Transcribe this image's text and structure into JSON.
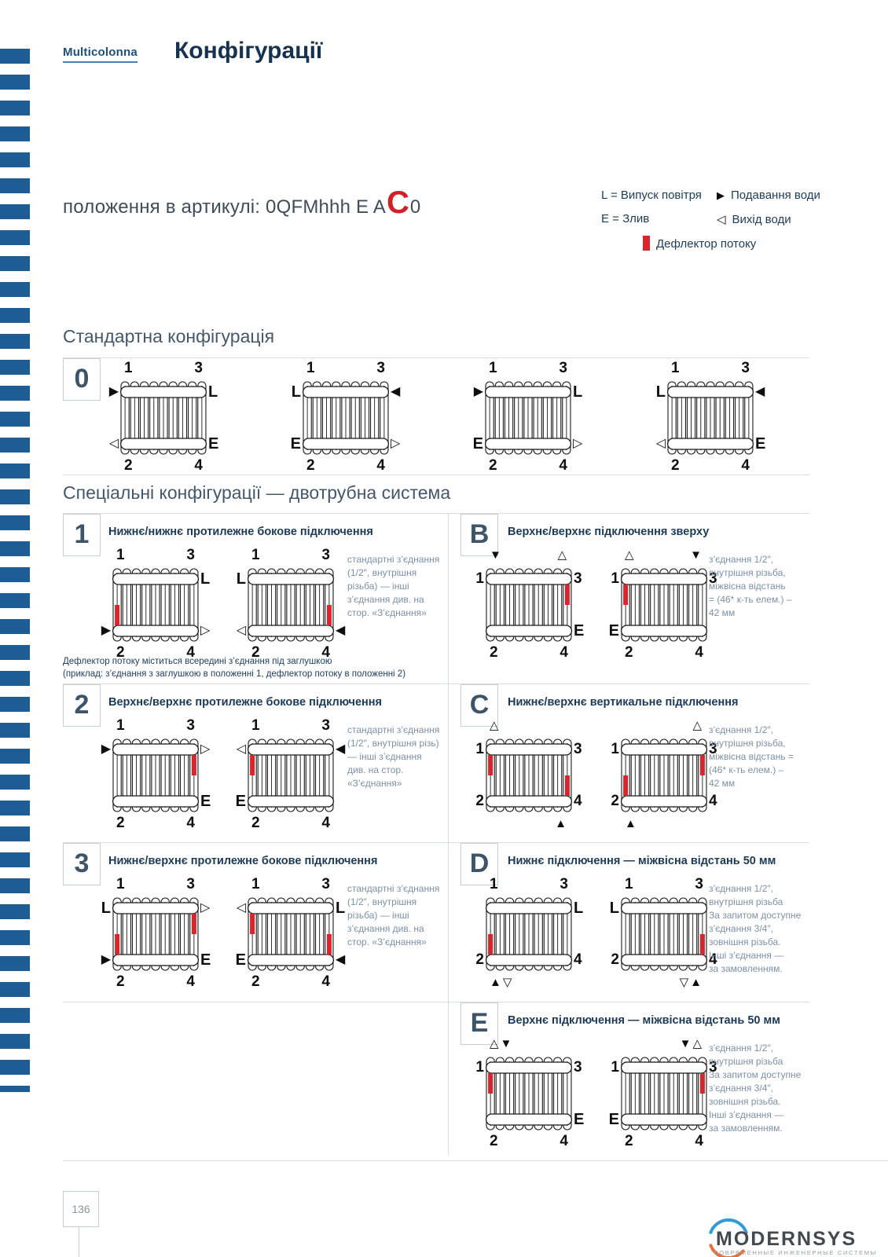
{
  "header": {
    "brand": "Multicolonna",
    "title": "Конфігурації"
  },
  "article": {
    "prefix": "положення в артикулі: 0QFMhhh E A",
    "highlight": "C",
    "suffix": "0"
  },
  "legend": {
    "air": "L = Випуск повітря",
    "drain": "E = Злив",
    "supply_icon": "▶",
    "supply": "Подавання води",
    "return_icon": "◁",
    "return": "Вихід води",
    "deflector": "Дефлектор потоку"
  },
  "headings": {
    "standard": "Стандартна конфігурація",
    "special": "Спеціальні конфігурації — двотрубна система"
  },
  "standard": {
    "badge": "0",
    "radiators": [
      {
        "num_top": "out",
        "num_bottom": "out",
        "side_tl": "▶",
        "side_tr": "L",
        "side_bl": "◁",
        "side_br": "E",
        "deflectors": []
      },
      {
        "num_top": "out",
        "num_bottom": "out",
        "side_tl": "L",
        "side_tr": "◀",
        "side_bl": "E",
        "side_br": "▷",
        "deflectors": []
      },
      {
        "num_top": "out",
        "num_bottom": "out",
        "side_tl": "▶",
        "side_tr": "L",
        "side_bl": "E",
        "side_br": "▷",
        "deflectors": []
      },
      {
        "num_top": "out",
        "num_bottom": "out",
        "side_tl": "L",
        "side_tr": "◀",
        "side_bl": "◁",
        "side_br": "E",
        "deflectors": []
      }
    ]
  },
  "special": {
    "layout": [
      [
        0,
        1
      ],
      [
        2,
        3
      ],
      [
        4,
        5
      ],
      [
        null,
        6
      ]
    ],
    "sections": [
      {
        "badge": "1",
        "title": "Нижнє/нижнє протилежне бокове підключення",
        "note": "стандартні з’єднання\n(1/2″, внутрішня\nрізьба) — інші\nз’єднання див. на\nстор. «З’єднання»",
        "footnote": "Дефлектор потоку міститься всередині з’єднання під заглушкою\n(приклад: з’єднання з заглушкою в положенні 1, дефлектор потоку в положенні 2)",
        "radiators": [
          {
            "num_top": "out",
            "num_bottom": "out",
            "side_tr": "L",
            "side_bl": "▶",
            "side_br": "▷",
            "deflectors": [
              "bl"
            ]
          },
          {
            "num_top": "out",
            "num_bottom": "out",
            "side_tl": "L",
            "side_bl": "◁",
            "side_br": "◀",
            "deflectors": [
              "br"
            ]
          }
        ]
      },
      {
        "badge": "B",
        "title": "Верхнє/верхнє підключення зверху",
        "note": "з’єднання 1/2″,\nвнутрішня різьба,\nміжвісна відстань\n= (46* к-ть елем.) –\n42 мм",
        "radiators": [
          {
            "num_top": "side",
            "num_bottom": "out",
            "above_l": "▼",
            "above_r": "△",
            "side_br": "E",
            "deflectors": [
              "tr"
            ]
          },
          {
            "num_top": "side",
            "num_bottom": "out",
            "above_l": "△",
            "above_r": "▼",
            "side_bl": "E",
            "deflectors": [
              "tl"
            ]
          }
        ]
      },
      {
        "badge": "2",
        "title": "Верхнє/верхнє протилежне бокове підключення",
        "note": "стандартні з’єднання\n(1/2″, внутрішня різь)\n— інші з’єднання\nдив. на стор.\n«З’єднання»",
        "radiators": [
          {
            "num_top": "out",
            "num_bottom": "out",
            "side_tl": "▶",
            "side_tr": "▷",
            "side_br": "E",
            "deflectors": [
              "tr"
            ]
          },
          {
            "num_top": "out",
            "num_bottom": "out",
            "side_tl": "◁",
            "side_tr": "◀",
            "side_bl": "E",
            "deflectors": [
              "tl"
            ]
          }
        ]
      },
      {
        "badge": "C",
        "title": "Нижнє/верхнє вертикальне підключення",
        "note": "з’єднання 1/2″,\nвнутрішня різьба,\nміжвісна відстань =\n(46* к-ть елем.) –\n42 мм",
        "radiators": [
          {
            "num_top": "side",
            "num_bottom": "side",
            "above_l": "△",
            "below_r": "▲",
            "deflectors": [
              "tl",
              "br"
            ]
          },
          {
            "num_top": "side",
            "num_bottom": "side",
            "above_r": "△",
            "below_l": "▲",
            "deflectors": [
              "tr",
              "bl"
            ]
          }
        ]
      },
      {
        "badge": "3",
        "title": "Нижнє/верхнє протилежне бокове підключення",
        "note": "стандартні з’єднання\n(1/2″, внутрішня\nрізьба) — інші\nз’єднання див. на\nстор. «З’єднання»",
        "radiators": [
          {
            "num_top": "out",
            "num_bottom": "out",
            "side_tl": "L",
            "side_tr": "▷",
            "side_bl": "▶",
            "side_br": "E",
            "deflectors": [
              "tr",
              "bl"
            ]
          },
          {
            "num_top": "out",
            "num_bottom": "out",
            "side_tl": "◁",
            "side_tr": "L",
            "side_bl": "E",
            "side_br": "◀",
            "deflectors": [
              "tl",
              "br"
            ]
          }
        ]
      },
      {
        "badge": "D",
        "title": "Нижнє підключення — міжвісна відстань 50 мм",
        "note": "з’єднання 1/2″,\nвнутрішня різьба\nЗа запитом доступне\nз’єднання 3/4″,\nзовнішня різьба.\nІнші з’єднання —\nза замовленням.",
        "radiators": [
          {
            "num_top": "out",
            "num_bottom": "side",
            "side_tr": "L",
            "below_l": "▲▽",
            "deflectors": [
              "bl"
            ]
          },
          {
            "num_top": "out",
            "num_bottom": "side",
            "side_tl": "L",
            "below_r": "▽▲",
            "deflectors": [
              "br"
            ]
          }
        ]
      },
      {
        "badge": "E",
        "title": "Верхнє підключення — міжвісна відстань 50 мм",
        "note": "з’єднання 1/2″,\nвнутрішня різьба\nЗа запитом доступне\nз’єднання 3/4″,\nзовнішня різьба.\nІнші з’єднання —\nза замовленням.",
        "radiators": [
          {
            "num_top": "side",
            "num_bottom": "out",
            "above_l": "△▼",
            "side_br": "E",
            "deflectors": [
              "tl"
            ]
          },
          {
            "num_top": "side",
            "num_bottom": "out",
            "above_r": "▼△",
            "side_bl": "E",
            "deflectors": [
              "tr"
            ]
          }
        ]
      }
    ]
  },
  "footer": {
    "page_number": "136",
    "logo_text": "MODERNSYS",
    "logo_tagline": "СОВРЕМЕННЫЕ ИНЖЕНЕРНЫЕ СИСТЕМЫ"
  },
  "colors": {
    "stripe_blue": "#1d5c95",
    "accent_red": "#d7262c",
    "navy": "#16324e",
    "note_blue_gray": "#7d91a7"
  }
}
